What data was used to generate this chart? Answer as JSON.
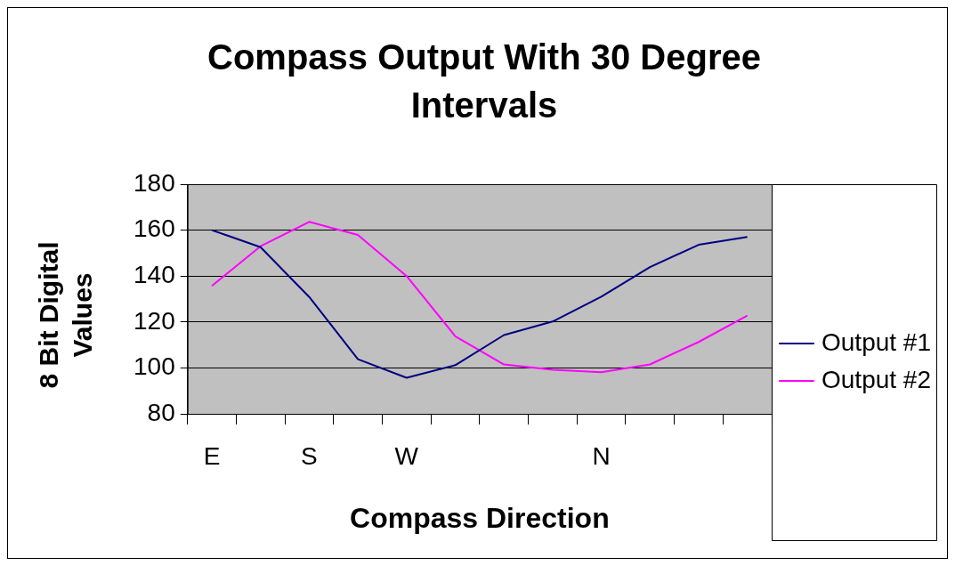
{
  "chart_data": {
    "type": "line",
    "title": "Compass Output With 30 Degree Intervals",
    "xlabel": "Compass Direction",
    "ylabel": "8 Bit Digital Values",
    "categories": [
      "E",
      null,
      "S",
      null,
      "W",
      null,
      null,
      null,
      "N",
      null,
      null,
      null
    ],
    "series": [
      {
        "name": "Output #1",
        "color": "#000080",
        "values": [
          160,
          152.6,
          130.9,
          103.8,
          95.7,
          101.2,
          114.3,
          120.2,
          131,
          143.9,
          153.6,
          157
        ]
      },
      {
        "name": "Output #2",
        "color": "#ff00ff",
        "values": [
          135.7,
          153,
          163.6,
          157.9,
          140,
          113.8,
          101.5,
          99.2,
          98.1,
          101.5,
          111.3,
          122.8
        ]
      }
    ],
    "ylim": [
      80,
      180
    ],
    "yticks": [
      80,
      100,
      120,
      140,
      160,
      180
    ],
    "grid": "y",
    "legend": "right",
    "marker": "none",
    "line_style": "solid"
  }
}
